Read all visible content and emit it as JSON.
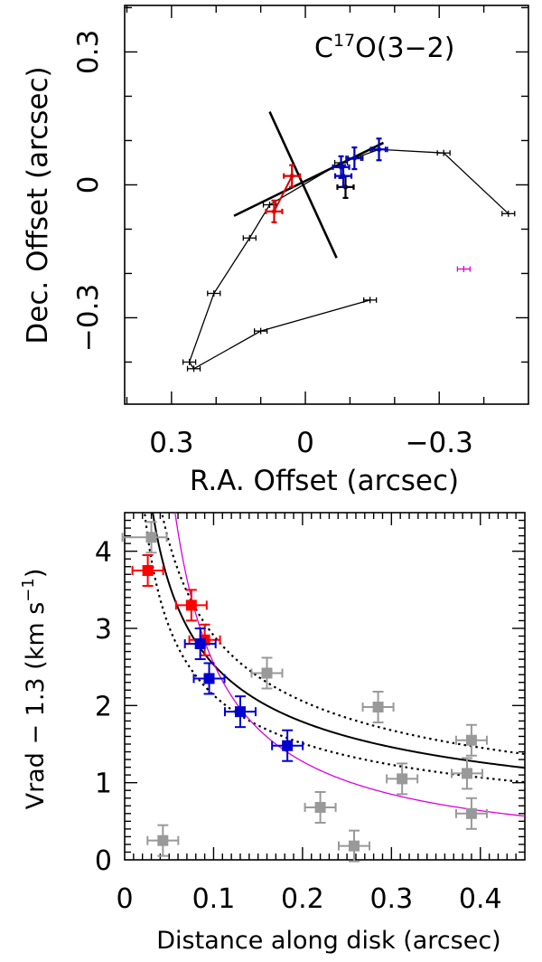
{
  "chart_data": [
    {
      "type": "scatter",
      "title": "C17O(3−2)",
      "title_parts": {
        "main": "C",
        "superscript": "17",
        "rest": "O(3−2)"
      },
      "xlabel": "R.A. Offset (arcsec)",
      "ylabel": "Dec. Offset (arcsec)",
      "xlim": [
        0.405,
        -0.5
      ],
      "ylim": [
        -0.495,
        0.405
      ],
      "xticks": [
        0.3,
        0,
        -0.3
      ],
      "xtick_labels": [
        "0.3",
        "0",
        "−0.3"
      ],
      "yticks": [
        0.3,
        0,
        -0.3
      ],
      "ytick_labels": [
        "0.3",
        "0",
        "−0.3"
      ],
      "colors": {
        "black": "#000000",
        "red": "#e00000",
        "blue": "#0000c0",
        "magenta": "#e000e0"
      },
      "series": [
        {
          "name": "black-path",
          "color": "black",
          "connected": true,
          "points": [
            [
              -0.455,
              -0.065
            ],
            [
              -0.31,
              0.072
            ],
            [
              -0.165,
              0.08
            ],
            [
              -0.11,
              0.06
            ],
            [
              -0.08,
              0.05
            ],
            [
              0.08,
              -0.045
            ],
            [
              0.125,
              -0.12
            ],
            [
              0.205,
              -0.245
            ],
            [
              0.26,
              -0.4
            ],
            [
              0.25,
              -0.415
            ],
            [
              0.1,
              -0.33
            ],
            [
              -0.145,
              -0.26
            ]
          ]
        },
        {
          "name": "black-offset",
          "color": "black",
          "connected": false,
          "points": [
            [
              -0.09,
              -0.005
            ]
          ]
        },
        {
          "name": "red",
          "color": "red",
          "connected": false,
          "points": [
            [
              0.03,
              0.02
            ],
            [
              0.07,
              -0.06
            ]
          ]
        },
        {
          "name": "blue",
          "color": "blue",
          "connected": false,
          "points": [
            [
              -0.165,
              0.08
            ],
            [
              -0.11,
              0.06
            ],
            [
              -0.08,
              0.04
            ],
            [
              -0.085,
              0.02
            ]
          ]
        },
        {
          "name": "magenta",
          "color": "magenta",
          "connected": false,
          "points": [
            [
              -0.355,
              -0.19
            ]
          ]
        }
      ],
      "lines": [
        {
          "name": "disk-axis",
          "from": [
            0.16,
            -0.07
          ],
          "to": [
            -0.175,
            0.095
          ]
        },
        {
          "name": "outflow-axis",
          "from": [
            0.08,
            0.165
          ],
          "to": [
            -0.07,
            -0.165
          ]
        }
      ]
    },
    {
      "type": "scatter",
      "xlabel": "Distance along disk (arcsec)",
      "ylabel": "Vrad − 1.3 (km s⁻¹)",
      "ylabel_parts": {
        "main": "Vrad − 1.3 (km s",
        "superscript": "−1",
        "rest": ")"
      },
      "xlim": [
        0,
        0.45
      ],
      "ylim": [
        0,
        4.5
      ],
      "xticks": [
        0,
        0.1,
        0.2,
        0.3,
        0.4
      ],
      "xtick_labels": [
        "0",
        "0.1",
        "0.2",
        "0.3",
        "0.4"
      ],
      "yticks": [
        0,
        1,
        2,
        3,
        4
      ],
      "ytick_labels": [
        "0",
        "1",
        "2",
        "3",
        "4"
      ],
      "colors": {
        "red": "#ff0000",
        "blue": "#0000d0",
        "gray": "#999999",
        "black": "#000000",
        "magenta": "#dd00dd"
      },
      "series": [
        {
          "name": "red",
          "color": "red",
          "points": [
            [
              0.026,
              3.75
            ],
            [
              0.075,
              3.3
            ],
            [
              0.09,
              2.85
            ]
          ]
        },
        {
          "name": "blue",
          "color": "blue",
          "points": [
            [
              0.085,
              2.8
            ],
            [
              0.095,
              2.35
            ],
            [
              0.13,
              1.92
            ],
            [
              0.183,
              1.48
            ]
          ]
        },
        {
          "name": "gray",
          "color": "gray",
          "points": [
            [
              0.03,
              4.18
            ],
            [
              0.043,
              0.25
            ],
            [
              0.16,
              2.42
            ],
            [
              0.22,
              0.68
            ],
            [
              0.258,
              0.18
            ],
            [
              0.285,
              1.98
            ],
            [
              0.312,
              1.05
            ],
            [
              0.385,
              1.12
            ],
            [
              0.39,
              1.55
            ],
            [
              0.39,
              0.6
            ]
          ]
        }
      ],
      "curves": [
        {
          "name": "keplerian-fit",
          "color": "black",
          "style": "solid",
          "A": 0.8,
          "exponent": -0.5
        },
        {
          "name": "fit-upper",
          "color": "black",
          "style": "dotted",
          "A": 0.92,
          "exponent": -0.5
        },
        {
          "name": "fit-lower",
          "color": "black",
          "style": "dotted",
          "A": 0.675,
          "exponent": -0.5
        },
        {
          "name": "magenta-fit",
          "color": "magenta",
          "style": "solid",
          "A": 0.255,
          "exponent": -1.0
        }
      ]
    }
  ]
}
